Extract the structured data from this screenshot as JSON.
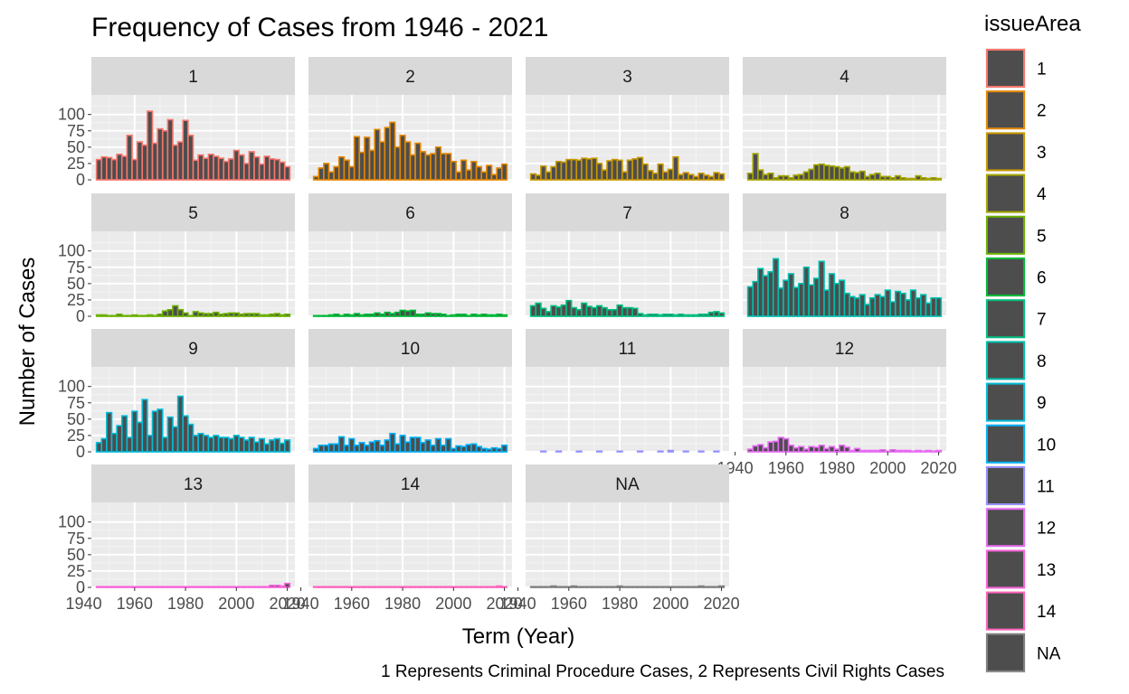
{
  "chart_data": {
    "type": "bar",
    "title": "Frequency of Cases from 1946 - 2021",
    "xlabel": "Term (Year)",
    "ylabel": "Number of Cases",
    "caption": "1 Represents Criminal Procedure Cases, 2 Represents Civil Rights Cases",
    "legend_title": "issueArea",
    "legend_position": "right",
    "facet_layout": {
      "ncol": 4,
      "nrow": 4,
      "free_x_axis_text": "bottom panel in each column"
    },
    "x_range": [
      1940,
      2022
    ],
    "xlim": [
      1943,
      2023
    ],
    "x_ticks": [
      "1940",
      "1960",
      "1980",
      "2000",
      "2020"
    ],
    "ylim": [
      0,
      130
    ],
    "y_ticks": [
      "0",
      "25",
      "50",
      "75",
      "100"
    ],
    "bin_width_years": 2,
    "grid": true,
    "panel_background": "#ebebeb",
    "bar_fill": "#4d4d4d",
    "series": [
      {
        "name": "1",
        "color": "#F8766D",
        "x": [
          1946,
          1948,
          1950,
          1952,
          1954,
          1956,
          1958,
          1960,
          1962,
          1964,
          1966,
          1968,
          1970,
          1972,
          1974,
          1976,
          1978,
          1980,
          1982,
          1984,
          1986,
          1988,
          1990,
          1992,
          1994,
          1996,
          1998,
          2000,
          2002,
          2004,
          2006,
          2008,
          2010,
          2012,
          2014,
          2016,
          2018,
          2020
        ],
        "values": [
          31,
          35,
          34,
          31,
          39,
          36,
          68,
          31,
          58,
          53,
          105,
          56,
          78,
          75,
          92,
          53,
          58,
          91,
          68,
          30,
          38,
          33,
          39,
          36,
          33,
          28,
          32,
          45,
          38,
          25,
          43,
          35,
          24,
          36,
          32,
          31,
          27,
          20
        ]
      },
      {
        "name": "2",
        "color": "#E58700",
        "x": [
          1946,
          1948,
          1950,
          1952,
          1954,
          1956,
          1958,
          1960,
          1962,
          1964,
          1966,
          1968,
          1970,
          1972,
          1974,
          1976,
          1978,
          1980,
          1982,
          1984,
          1986,
          1988,
          1990,
          1992,
          1994,
          1996,
          1998,
          2000,
          2002,
          2004,
          2006,
          2008,
          2010,
          2012,
          2014,
          2016,
          2018,
          2020
        ],
        "values": [
          5,
          18,
          25,
          12,
          20,
          35,
          30,
          20,
          66,
          42,
          65,
          45,
          77,
          58,
          80,
          88,
          50,
          68,
          58,
          38,
          56,
          43,
          38,
          40,
          50,
          40,
          40,
          28,
          12,
          30,
          15,
          28,
          20,
          12,
          22,
          8,
          18,
          24
        ]
      },
      {
        "name": "3",
        "color": "#C99800",
        "x": [
          1946,
          1948,
          1950,
          1952,
          1954,
          1956,
          1958,
          1960,
          1962,
          1964,
          1966,
          1968,
          1970,
          1972,
          1974,
          1976,
          1978,
          1980,
          1982,
          1984,
          1986,
          1988,
          1990,
          1992,
          1994,
          1996,
          1998,
          2000,
          2002,
          2004,
          2006,
          2008,
          2010,
          2012,
          2014,
          2016,
          2018,
          2020
        ],
        "values": [
          9,
          7,
          21,
          12,
          20,
          28,
          27,
          31,
          31,
          30,
          33,
          32,
          33,
          25,
          15,
          29,
          31,
          30,
          12,
          30,
          32,
          34,
          24,
          14,
          10,
          24,
          12,
          16,
          35,
          8,
          11,
          8,
          5,
          10,
          7,
          5,
          11,
          9
        ]
      },
      {
        "name": "4",
        "color": "#A3A500",
        "x": [
          1946,
          1948,
          1950,
          1952,
          1954,
          1956,
          1958,
          1960,
          1962,
          1964,
          1966,
          1968,
          1970,
          1972,
          1974,
          1976,
          1978,
          1980,
          1982,
          1984,
          1986,
          1988,
          1990,
          1992,
          1994,
          1996,
          1998,
          2000,
          2002,
          2004,
          2006,
          2008,
          2010,
          2012,
          2014,
          2016,
          2018,
          2020
        ],
        "values": [
          10,
          40,
          15,
          8,
          10,
          3,
          6,
          6,
          3,
          7,
          8,
          12,
          16,
          23,
          24,
          22,
          21,
          20,
          18,
          20,
          12,
          11,
          13,
          5,
          8,
          10,
          5,
          5,
          3,
          6,
          3,
          2,
          2,
          6,
          3,
          2,
          3,
          2
        ]
      },
      {
        "name": "5",
        "color": "#6BB100",
        "x": [
          1946,
          1948,
          1950,
          1952,
          1954,
          1956,
          1958,
          1960,
          1962,
          1964,
          1966,
          1968,
          1970,
          1972,
          1974,
          1976,
          1978,
          1980,
          1982,
          1984,
          1986,
          1988,
          1990,
          1992,
          1994,
          1996,
          1998,
          2000,
          2002,
          2004,
          2006,
          2008,
          2010,
          2012,
          2014,
          2016,
          2018,
          2020
        ],
        "values": [
          2,
          2,
          1,
          1,
          3,
          1,
          1,
          2,
          1,
          1,
          2,
          1,
          3,
          8,
          10,
          16,
          10,
          5,
          1,
          7,
          5,
          4,
          4,
          6,
          3,
          4,
          5,
          5,
          3,
          4,
          4,
          4,
          2,
          2,
          3,
          4,
          2,
          3
        ]
      },
      {
        "name": "6",
        "color": "#00BA38",
        "x": [
          1946,
          1948,
          1950,
          1952,
          1954,
          1956,
          1958,
          1960,
          1962,
          1964,
          1966,
          1968,
          1970,
          1972,
          1974,
          1976,
          1978,
          1980,
          1982,
          1984,
          1986,
          1988,
          1990,
          1992,
          1994,
          1996,
          1998,
          2000,
          2002,
          2004,
          2006,
          2008,
          2010,
          2012,
          2014,
          2016,
          2018,
          2020
        ],
        "values": [
          1,
          1,
          1,
          2,
          3,
          1,
          3,
          2,
          4,
          2,
          3,
          3,
          5,
          3,
          6,
          4,
          6,
          9,
          8,
          9,
          3,
          3,
          5,
          4,
          4,
          3,
          1,
          2,
          3,
          3,
          1,
          3,
          2,
          3,
          2,
          2,
          3,
          2
        ]
      },
      {
        "name": "7",
        "color": "#00BF7D",
        "x": [
          1946,
          1948,
          1950,
          1952,
          1954,
          1956,
          1958,
          1960,
          1962,
          1964,
          1966,
          1968,
          1970,
          1972,
          1974,
          1976,
          1978,
          1980,
          1982,
          1984,
          1986,
          1988,
          1990,
          1992,
          1994,
          1996,
          1998,
          2000,
          2002,
          2004,
          2006,
          2008,
          2010,
          2012,
          2014,
          2016,
          2018,
          2020
        ],
        "values": [
          16,
          20,
          12,
          7,
          16,
          14,
          17,
          24,
          13,
          10,
          20,
          15,
          13,
          16,
          13,
          10,
          10,
          17,
          13,
          13,
          12,
          4,
          2,
          3,
          3,
          2,
          3,
          3,
          2,
          3,
          2,
          2,
          2,
          3,
          3,
          6,
          7,
          5
        ]
      },
      {
        "name": "8",
        "color": "#00C0AF",
        "x": [
          1946,
          1948,
          1950,
          1952,
          1954,
          1956,
          1958,
          1960,
          1962,
          1964,
          1966,
          1968,
          1970,
          1972,
          1974,
          1976,
          1978,
          1980,
          1982,
          1984,
          1986,
          1988,
          1990,
          1992,
          1994,
          1996,
          1998,
          2000,
          2002,
          2004,
          2006,
          2008,
          2010,
          2012,
          2014,
          2016,
          2018,
          2020
        ],
        "values": [
          45,
          53,
          73,
          62,
          68,
          88,
          43,
          55,
          65,
          44,
          50,
          75,
          48,
          58,
          84,
          40,
          65,
          50,
          55,
          35,
          30,
          28,
          33,
          18,
          28,
          33,
          30,
          40,
          22,
          38,
          35,
          25,
          40,
          28,
          33,
          20,
          28,
          28
        ]
      },
      {
        "name": "9",
        "color": "#00BCD8",
        "x": [
          1946,
          1948,
          1950,
          1952,
          1954,
          1956,
          1958,
          1960,
          1962,
          1964,
          1966,
          1968,
          1970,
          1972,
          1974,
          1976,
          1978,
          1980,
          1982,
          1984,
          1986,
          1988,
          1990,
          1992,
          1994,
          1996,
          1998,
          2000,
          2002,
          2004,
          2006,
          2008,
          2010,
          2012,
          2014,
          2016,
          2018,
          2020
        ],
        "values": [
          14,
          20,
          60,
          28,
          40,
          55,
          22,
          62,
          45,
          80,
          25,
          62,
          65,
          22,
          53,
          38,
          85,
          55,
          42,
          25,
          28,
          25,
          22,
          25,
          22,
          22,
          20,
          25,
          22,
          18,
          22,
          15,
          20,
          12,
          18,
          20,
          13,
          18
        ]
      },
      {
        "name": "10",
        "color": "#00B0F6",
        "x": [
          1946,
          1948,
          1950,
          1952,
          1954,
          1956,
          1958,
          1960,
          1962,
          1964,
          1966,
          1968,
          1970,
          1972,
          1974,
          1976,
          1978,
          1980,
          1982,
          1984,
          1986,
          1988,
          1990,
          1992,
          1994,
          1996,
          1998,
          2000,
          2002,
          2004,
          2006,
          2008,
          2010,
          2012,
          2014,
          2016,
          2018,
          2020
        ],
        "values": [
          5,
          10,
          10,
          12,
          12,
          23,
          10,
          20,
          10,
          14,
          10,
          15,
          17,
          10,
          18,
          28,
          12,
          25,
          15,
          22,
          22,
          14,
          18,
          10,
          20,
          10,
          20,
          5,
          9,
          8,
          11,
          12,
          8,
          5,
          4,
          6,
          5,
          10
        ]
      },
      {
        "name": "11",
        "color": "#9590FF",
        "x": [
          1946,
          1948,
          1950,
          1952,
          1954,
          1956,
          1958,
          1960,
          1962,
          1964,
          1966,
          1968,
          1970,
          1972,
          1974,
          1976,
          1978,
          1980,
          1982,
          1984,
          1986,
          1988,
          1990,
          1992,
          1994,
          1996,
          1998,
          2000,
          2002,
          2004,
          2006,
          2008,
          2010,
          2012,
          2014,
          2016,
          2018,
          2020
        ],
        "values": [
          0,
          0,
          1,
          0,
          0,
          1,
          0,
          0,
          0,
          1,
          0,
          0,
          0,
          1,
          0,
          0,
          0,
          1,
          0,
          0,
          0,
          1,
          0,
          0,
          0,
          1,
          0,
          2,
          0,
          0,
          1,
          0,
          0,
          1,
          0,
          0,
          1,
          0
        ]
      },
      {
        "name": "12",
        "color": "#E76BF3",
        "x": [
          1946,
          1948,
          1950,
          1952,
          1954,
          1956,
          1958,
          1960,
          1962,
          1964,
          1966,
          1968,
          1970,
          1972,
          1974,
          1976,
          1978,
          1980,
          1982,
          1984,
          1986,
          1988,
          1990,
          1992,
          1994,
          1996,
          1998,
          2000,
          2002,
          2004,
          2006,
          2008,
          2010,
          2012,
          2014,
          2016,
          2018,
          2020
        ],
        "values": [
          4,
          9,
          11,
          6,
          15,
          16,
          22,
          20,
          10,
          6,
          8,
          4,
          8,
          7,
          10,
          5,
          8,
          4,
          10,
          7,
          2,
          5,
          2,
          2,
          2,
          2,
          3,
          1,
          3,
          2,
          2,
          2,
          1,
          2,
          1,
          2,
          1,
          2
        ]
      },
      {
        "name": "13",
        "color": "#FA62DB",
        "x": [
          1946,
          1948,
          1950,
          1952,
          1954,
          1956,
          1958,
          1960,
          1962,
          1964,
          1966,
          1968,
          1970,
          1972,
          1974,
          1976,
          1978,
          1980,
          1982,
          1984,
          1986,
          1988,
          1990,
          1992,
          1994,
          1996,
          1998,
          2000,
          2002,
          2004,
          2006,
          2008,
          2010,
          2012,
          2014,
          2016,
          2018,
          2020
        ],
        "values": [
          1,
          1,
          1,
          1,
          1,
          1,
          1,
          1,
          1,
          1,
          1,
          1,
          1,
          1,
          1,
          1,
          1,
          1,
          1,
          1,
          1,
          1,
          1,
          1,
          1,
          1,
          1,
          1,
          1,
          1,
          1,
          1,
          1,
          1,
          3,
          3,
          2,
          6
        ]
      },
      {
        "name": "14",
        "color": "#FF62BC",
        "x": [
          1946,
          1948,
          1950,
          1952,
          1954,
          1956,
          1958,
          1960,
          1962,
          1964,
          1966,
          1968,
          1970,
          1972,
          1974,
          1976,
          1978,
          1980,
          1982,
          1984,
          1986,
          1988,
          1990,
          1992,
          1994,
          1996,
          1998,
          2000,
          2002,
          2004,
          2006,
          2008,
          2010,
          2012,
          2014,
          2016,
          2018,
          2020
        ],
        "values": [
          1,
          1,
          1,
          1,
          1,
          1,
          1,
          1,
          1,
          1,
          1,
          1,
          1,
          1,
          1,
          1,
          1,
          1,
          1,
          1,
          1,
          1,
          1,
          1,
          1,
          1,
          1,
          1,
          1,
          1,
          1,
          1,
          1,
          1,
          1,
          1,
          2,
          1
        ]
      },
      {
        "name": "NA",
        "color": "#7F7F7F",
        "x": [
          1946,
          1948,
          1950,
          1952,
          1954,
          1956,
          1958,
          1960,
          1962,
          1964,
          1966,
          1968,
          1970,
          1972,
          1974,
          1976,
          1978,
          1980,
          1982,
          1984,
          1986,
          1988,
          1990,
          1992,
          1994,
          1996,
          1998,
          2000,
          2002,
          2004,
          2006,
          2008,
          2010,
          2012,
          2014,
          2016,
          2018,
          2020
        ],
        "values": [
          1,
          1,
          1,
          1,
          2,
          1,
          1,
          1,
          2,
          1,
          1,
          1,
          1,
          1,
          1,
          1,
          1,
          2,
          1,
          1,
          1,
          1,
          1,
          1,
          1,
          1,
          1,
          1,
          1,
          1,
          1,
          1,
          1,
          2,
          1,
          1,
          1,
          2
        ]
      }
    ]
  }
}
